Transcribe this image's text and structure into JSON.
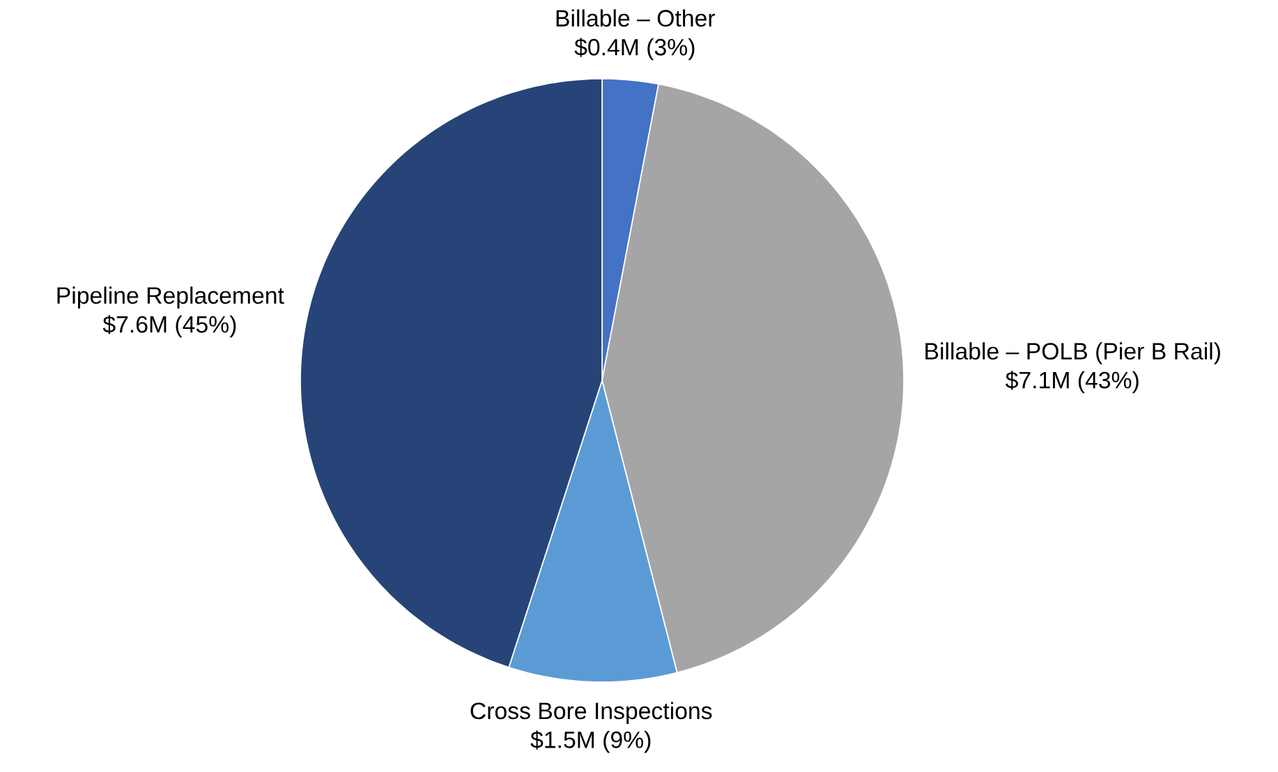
{
  "chart_data": {
    "type": "pie",
    "categories": [
      "Billable – Other",
      "Billable – POLB (Pier B Rail)",
      "Cross Bore Inspections",
      "Pipeline Replacement"
    ],
    "values": [
      3,
      43,
      9,
      45
    ],
    "colors": [
      "#4472c4",
      "#a5a5a5",
      "#5b9bd5",
      "#264478"
    ],
    "value_labels": [
      "$0.4M (3%)",
      "$7.1M (43%)",
      "$1.5M (9%)",
      "$7.6M (45%)"
    ]
  }
}
